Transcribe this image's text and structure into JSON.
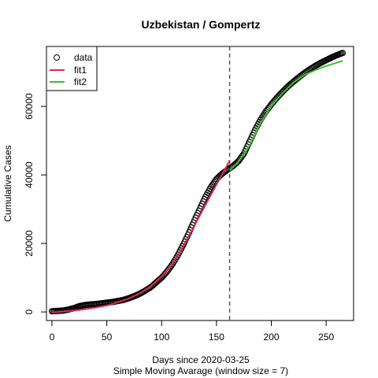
{
  "chart_data": {
    "type": "scatter",
    "title": "Uzbekistan / Gompertz",
    "xlabel": "Days since 2020-03-25",
    "subtitle": "Simple Moving Avarage (window size = 7)",
    "ylabel": "Cumulative Cases",
    "xlim": [
      -5,
      275
    ],
    "ylim": [
      -2500,
      77500
    ],
    "xticks": [
      0,
      50,
      100,
      150,
      200,
      250
    ],
    "yticks": [
      0,
      20000,
      40000,
      60000
    ],
    "xtick_labels": [
      "0",
      "50",
      "100",
      "150",
      "200",
      "250"
    ],
    "ytick_labels": [
      "0",
      "20000",
      "40000",
      "60000"
    ],
    "vline_x": 162,
    "legend": {
      "position": "top-left",
      "entries": [
        "data",
        "fit1",
        "fit2"
      ]
    },
    "series": [
      {
        "name": "data",
        "style": "open-circle",
        "color": "#000000",
        "x": [
          0,
          5,
          10,
          15,
          20,
          25,
          30,
          35,
          40,
          45,
          50,
          55,
          60,
          65,
          70,
          75,
          80,
          85,
          90,
          95,
          100,
          105,
          110,
          115,
          120,
          125,
          130,
          135,
          140,
          145,
          150,
          155,
          160,
          165,
          170,
          175,
          180,
          185,
          190,
          195,
          200,
          205,
          210,
          215,
          220,
          225,
          230,
          235,
          240,
          245,
          250,
          255,
          260,
          265
        ],
        "y": [
          200,
          300,
          400,
          700,
          1100,
          1700,
          2000,
          2200,
          2300,
          2500,
          2700,
          2900,
          3200,
          3500,
          4000,
          4600,
          5300,
          6200,
          7200,
          8600,
          10000,
          11800,
          14000,
          16700,
          19800,
          23200,
          26800,
          30200,
          33600,
          36500,
          38800,
          40300,
          41500,
          42600,
          44000,
          46200,
          49600,
          53000,
          56000,
          58500,
          60600,
          62500,
          64200,
          65800,
          67200,
          68500,
          69700,
          70800,
          71800,
          72700,
          73500,
          74300,
          75000,
          75600
        ]
      },
      {
        "name": "fit1",
        "style": "line",
        "color": "#e0284f",
        "x": [
          0,
          10,
          20,
          30,
          40,
          50,
          60,
          70,
          80,
          90,
          100,
          110,
          120,
          130,
          140,
          150,
          155,
          162
        ],
        "y": [
          -200,
          100,
          400,
          800,
          1300,
          1900,
          2800,
          3900,
          5400,
          7500,
          10400,
          14200,
          19300,
          25200,
          31300,
          37200,
          40000,
          44200
        ]
      },
      {
        "name": "fit2",
        "style": "line",
        "color": "#3dbf2f",
        "x": [
          162,
          170,
          180,
          190,
          200,
          210,
          220,
          230,
          240,
          250,
          260,
          265
        ],
        "y": [
          41300,
          43800,
          48500,
          55000,
          60000,
          63800,
          66900,
          69100,
          70600,
          71800,
          72800,
          73300
        ]
      }
    ]
  }
}
